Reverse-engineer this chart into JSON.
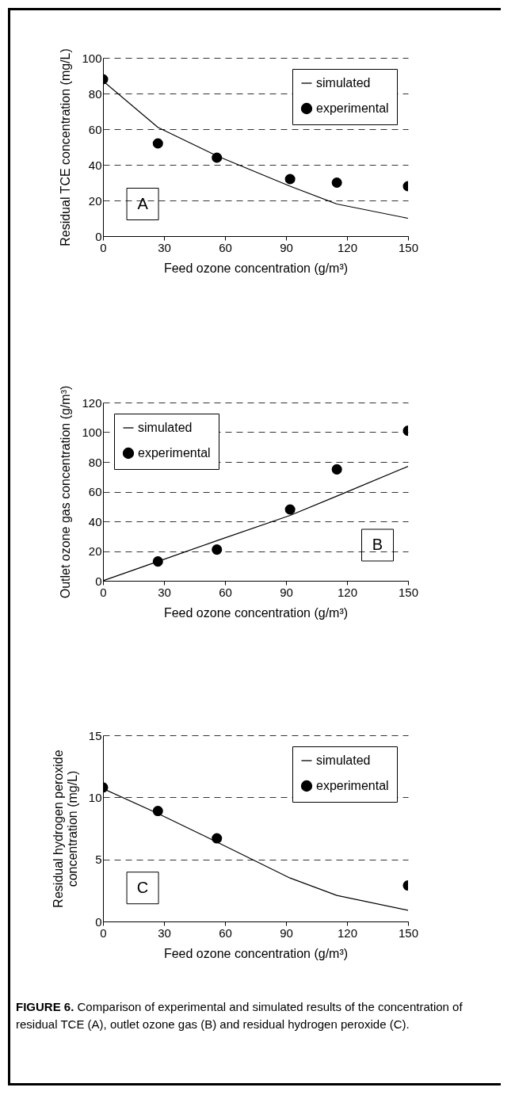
{
  "chart_data": [
    {
      "type": "line",
      "xlabel": "Feed ozone concentration (g/m³)",
      "ylabel": "Residual TCE concentration (mg/L)",
      "xlim": [
        0,
        150
      ],
      "xticks": [
        0,
        30,
        60,
        90,
        120,
        150
      ],
      "ylim": [
        0,
        100
      ],
      "yticks": [
        0,
        20,
        40,
        60,
        80,
        100
      ],
      "grid": "y",
      "legend": "top right",
      "annotations": [
        "A"
      ],
      "series": [
        {
          "name": "simulated",
          "type": "line",
          "color": "#000000",
          "marker": "none",
          "x": [
            0,
            27,
            56,
            92,
            115,
            150
          ],
          "values": [
            87,
            61,
            45,
            28,
            18,
            10
          ]
        },
        {
          "name": "experimental",
          "type": "scatter",
          "color": "#000000",
          "marker": "circle",
          "x": [
            0,
            27,
            56,
            92,
            115,
            150
          ],
          "values": [
            88,
            52,
            44,
            32,
            30,
            28
          ]
        }
      ]
    },
    {
      "type": "line",
      "xlabel": "Feed ozone concentration (g/m³)",
      "ylabel": "Outlet ozone gas concentration (g/m³)",
      "xlim": [
        0,
        150
      ],
      "xticks": [
        0,
        30,
        60,
        90,
        120,
        150
      ],
      "ylim": [
        0,
        120
      ],
      "yticks": [
        0,
        20,
        40,
        60,
        80,
        100,
        120
      ],
      "grid": "y",
      "legend": "top left",
      "annotations": [
        "B"
      ],
      "series": [
        {
          "name": "simulated",
          "type": "line",
          "color": "#000000",
          "marker": "none",
          "x": [
            0,
            27,
            56,
            92,
            115,
            150
          ],
          "values": [
            0,
            13,
            27,
            44,
            57,
            77
          ]
        },
        {
          "name": "experimental",
          "type": "scatter",
          "color": "#000000",
          "marker": "circle",
          "x": [
            27,
            56,
            92,
            115,
            150
          ],
          "values": [
            13,
            21,
            48,
            75,
            101
          ]
        }
      ]
    },
    {
      "type": "line",
      "xlabel": "Feed ozone concentration (g/m³)",
      "ylabel": "Residual hydrogen peroxide\nconcentration (mg/L)",
      "xlim": [
        0,
        150
      ],
      "xticks": [
        0,
        30,
        60,
        90,
        120,
        150
      ],
      "ylim": [
        0,
        15
      ],
      "yticks": [
        0,
        5,
        10,
        15
      ],
      "grid": "y",
      "legend": "top right",
      "annotations": [
        "C",
        "FIGURE 6.    Comparison of experimental and simulated results of the concentration of residual TCE (A), outlet ozone gas (B) and residual hydrogen peroxide (C)."
      ],
      "series": [
        {
          "name": "simulated",
          "type": "line",
          "color": "#000000",
          "marker": "none",
          "x": [
            0,
            27,
            56,
            92,
            115,
            150
          ],
          "values": [
            10.7,
            8.7,
            6.4,
            3.5,
            2.1,
            0.9
          ]
        },
        {
          "name": "experimental",
          "type": "scatter",
          "color": "#000000",
          "marker": "circle",
          "x": [
            0,
            27,
            56,
            150
          ],
          "values": [
            10.8,
            8.9,
            6.7,
            2.9
          ]
        }
      ]
    }
  ]
}
